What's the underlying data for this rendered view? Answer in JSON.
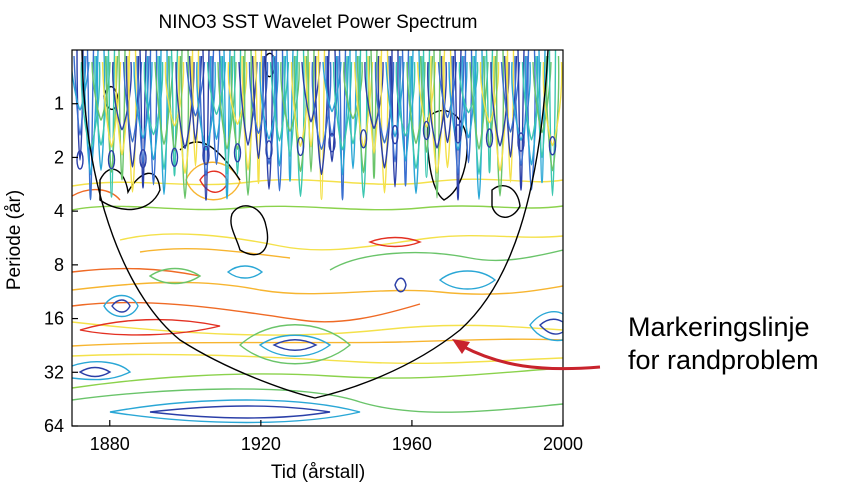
{
  "chart_data": {
    "type": "contour",
    "title": "NINO3 SST Wavelet Power Spectrum",
    "xlabel": "Tid (årstall)",
    "ylabel": "Periode (år)",
    "xlim": [
      1870,
      2000
    ],
    "xticks": [
      1880,
      1920,
      1960,
      2000
    ],
    "ylim": [
      0.5,
      64
    ],
    "ylog": true,
    "y_inverted": true,
    "yticks": [
      1,
      2,
      4,
      8,
      16,
      32,
      64
    ],
    "annotation": [
      "Markeringslinje",
      "for randproblem"
    ],
    "annotation_color": "#c8232c"
  }
}
